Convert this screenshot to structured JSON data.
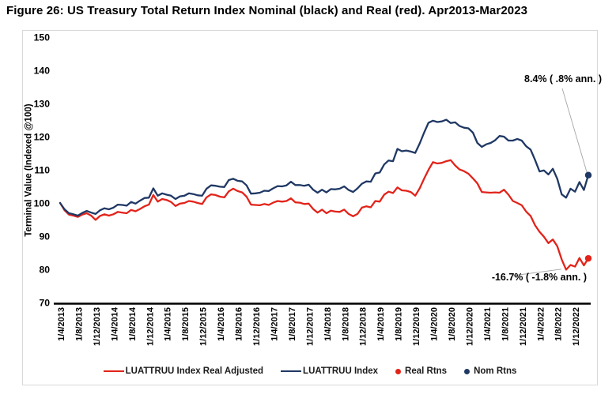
{
  "figure_title": "Figure 26: US Treasury Total Return Index Nominal (black) and Real (red). Apr2013-Mar2023",
  "chart_data": {
    "type": "line",
    "ylabel": "Terminal Value (Indexed @100)",
    "ylim": [
      70,
      150
    ],
    "yticks": [
      70,
      80,
      90,
      100,
      110,
      120,
      130,
      140,
      150
    ],
    "grid": false,
    "legend_position": "bottom-center",
    "x_frequency": "monthly, Apr 2013 - Mar 2023 (dates shown d/m/yyyy every 4 months)",
    "x_tick_labels": [
      "1/4/2013",
      "1/8/2013",
      "1/12/2013",
      "1/4/2014",
      "1/8/2014",
      "1/12/2014",
      "1/4/2015",
      "1/8/2015",
      "1/12/2015",
      "1/4/2016",
      "1/8/2016",
      "1/12/2016",
      "1/4/2017",
      "1/8/2017",
      "1/12/2017",
      "1/4/2018",
      "1/8/2018",
      "1/12/2018",
      "1/4/2019",
      "1/8/2019",
      "1/12/2019",
      "1/4/2020",
      "1/8/2020",
      "1/12/2020",
      "1/4/2021",
      "1/8/2021",
      "1/12/2021",
      "1/4/2022",
      "1/8/2022",
      "1/12/2022"
    ],
    "series": [
      {
        "name": "LUATTRUU Index Real Adjusted",
        "color": "#e2231a",
        "end_marker": true,
        "values": [
          100,
          97.8,
          96.5,
          96.2,
          95.8,
          96.5,
          96.9,
          96.2,
          94.9,
          96.1,
          96.6,
          96.2,
          96.6,
          97.3,
          97.1,
          96.9,
          97.9,
          97.5,
          98.2,
          99,
          99.5,
          102.4,
          100.4,
          101.2,
          100.9,
          100.3,
          99.1,
          99.8,
          100,
          100.6,
          100.4,
          100,
          99.7,
          101.7,
          102.6,
          102.4,
          101.9,
          101.7,
          103.5,
          104.3,
          103.6,
          103.2,
          101.9,
          99.5,
          99.4,
          99.3,
          99.7,
          99.4,
          100.1,
          100.6,
          100.4,
          100.6,
          101.4,
          100.2,
          100.1,
          99.7,
          99.8,
          98.2,
          97.1,
          98,
          96.9,
          97.7,
          97.4,
          97.3,
          98,
          96.7,
          96,
          96.7,
          98.6,
          99,
          98.7,
          100.6,
          100.4,
          102.5,
          103.4,
          103,
          104.7,
          103.8,
          103.7,
          103.3,
          102.2,
          104.4,
          107.3,
          110,
          112.3,
          111.9,
          112.1,
          112.6,
          112.9,
          111.3,
          110.1,
          109.6,
          108.8,
          107.4,
          105.9,
          103.3,
          103.2,
          103.1,
          103.2,
          103.1,
          104,
          102.5,
          100.6,
          100,
          99.3,
          97.4,
          96.1,
          93.3,
          91.3,
          89.8,
          87.9,
          89,
          87,
          83,
          79.9,
          81.3,
          80.8,
          83.4,
          81.2,
          83.3
        ]
      },
      {
        "name": "LUATTRUU Index",
        "color": "#1f3864",
        "end_marker": true,
        "values": [
          100,
          98.1,
          96.9,
          96.6,
          96.2,
          97,
          97.6,
          97.1,
          96.7,
          97.8,
          98.4,
          98.1,
          98.6,
          99.5,
          99.4,
          99.2,
          100.3,
          99.8,
          100.7,
          101.5,
          101.6,
          104.4,
          102.2,
          102.9,
          102.5,
          102.2,
          101.2,
          102,
          102.2,
          102.9,
          102.7,
          102.3,
          102.2,
          104.3,
          105.3,
          105.2,
          104.9,
          104.8,
          106.9,
          107.3,
          106.7,
          106.5,
          105.3,
          102.8,
          102.9,
          103.1,
          103.7,
          103.6,
          104.4,
          105.1,
          105,
          105.3,
          106.4,
          105.4,
          105.4,
          105.2,
          105.5,
          104,
          103.1,
          104,
          103.2,
          104.2,
          104.1,
          104.3,
          105,
          103.9,
          103.3,
          104.4,
          105.8,
          106.5,
          106.4,
          108.9,
          109.2,
          111.6,
          112.8,
          112.6,
          116.3,
          115.6,
          115.8,
          115.5,
          115.1,
          117.9,
          121.2,
          124.2,
          124.8,
          124.4,
          124.6,
          125.1,
          124.1,
          124.3,
          123.2,
          122.7,
          122.5,
          121.2,
          118.1,
          116.9,
          117.7,
          118.1,
          118.9,
          120.2,
          120,
          118.8,
          118.8,
          119.3,
          118.8,
          117.1,
          116.1,
          113,
          109.5,
          109.8,
          108.6,
          110.3,
          107.3,
          102.6,
          101.6,
          104.3,
          103.4,
          106.3,
          103.9,
          108.4
        ]
      }
    ],
    "annotations": [
      {
        "text": "8.4% ( .8% ann. )",
        "target": "nominal series end"
      },
      {
        "text": "-16.7% ( -1.8% ann. )",
        "target": "real series end"
      }
    ],
    "legend": [
      {
        "label": "LUATTRUU Index Real Adjusted",
        "swatch": "line",
        "color": "#e2231a"
      },
      {
        "label": "LUATTRUU Index",
        "swatch": "line",
        "color": "#1f3864"
      },
      {
        "label": "Real Rtns",
        "swatch": "dot",
        "color": "#e2231a"
      },
      {
        "label": "Nom Rtns",
        "swatch": "dot",
        "color": "#1f3864"
      }
    ]
  }
}
